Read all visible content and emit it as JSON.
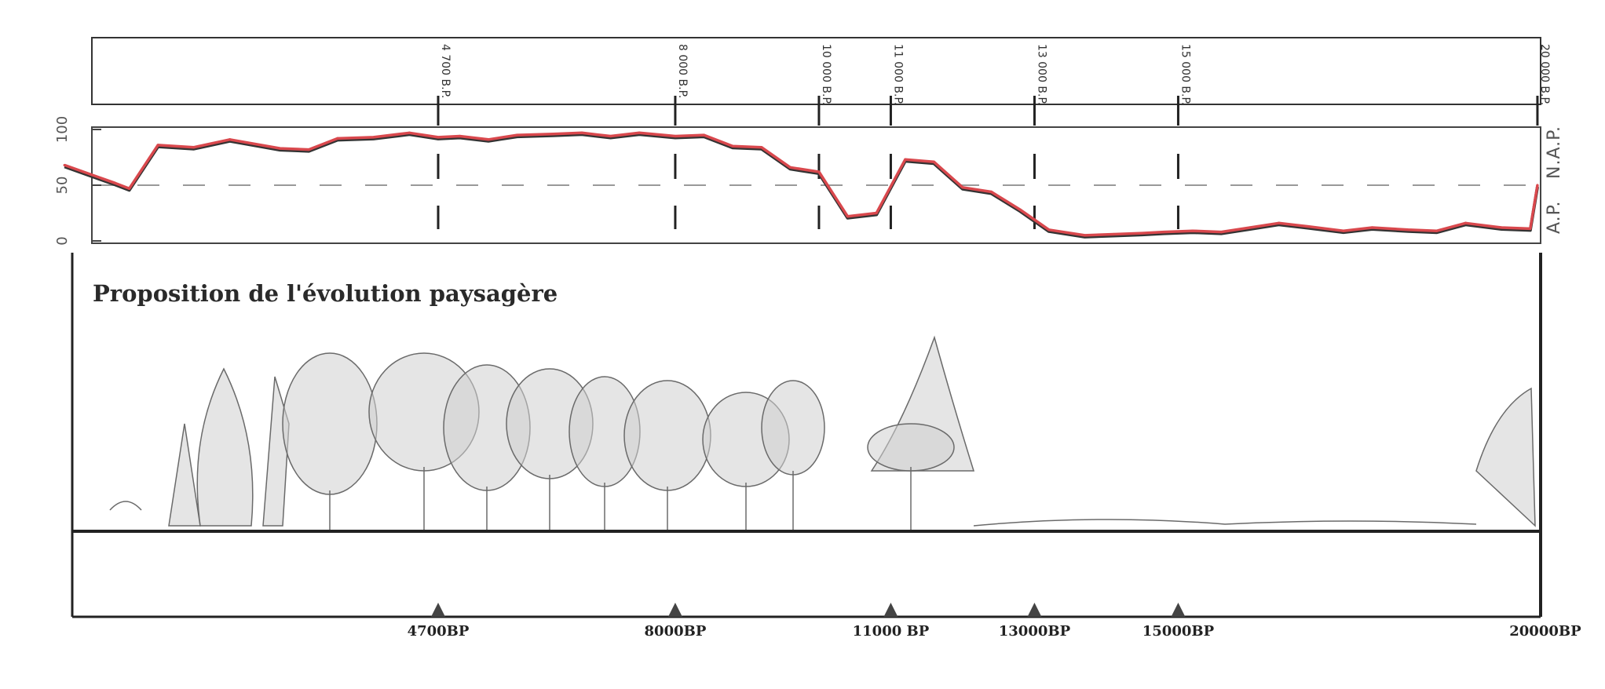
{
  "chart_data": {
    "type": "line",
    "title": "Proposition de l'évolution paysagère",
    "ylim": [
      0,
      100
    ],
    "yticks": [
      "0",
      "50",
      "100"
    ],
    "right_labels": {
      "top": "N.A.P.",
      "bottom": "A.P."
    },
    "series_color": "#d9484d",
    "dates_top": [
      {
        "label": "4 700 B.P.",
        "age": 4700
      },
      {
        "label": "8 000 B.P.",
        "age": 8000
      },
      {
        "label": "10 000 B.P.",
        "age": 10000
      },
      {
        "label": "11 000 B.P.",
        "age": 11000
      },
      {
        "label": "13 000 B.P.",
        "age": 13000
      },
      {
        "label": "15 000 B.P.",
        "age": 15000
      },
      {
        "label": "20 000 B.P.",
        "age": 20000
      }
    ],
    "dates_bottom": [
      {
        "label": "4700BP",
        "age": 4700
      },
      {
        "label": "8000BP",
        "age": 8000
      },
      {
        "label": "11000 BP",
        "age": 11000
      },
      {
        "label": "13000BP",
        "age": 13000
      },
      {
        "label": "15000BP",
        "age": 15000
      },
      {
        "label": "20000BP",
        "age": 20000
      }
    ],
    "x_age_bp": [
      -500,
      200,
      400,
      800,
      1300,
      1800,
      2500,
      2900,
      3300,
      3800,
      4300,
      4700,
      5000,
      5400,
      5800,
      6300,
      6700,
      7100,
      7500,
      8000,
      8400,
      8800,
      9200,
      9600,
      10000,
      10400,
      10800,
      11200,
      11600,
      12000,
      12400,
      12800,
      13200,
      13700,
      14100,
      14500,
      14800,
      15200,
      15600,
      16000,
      16400,
      16800,
      17300,
      17700,
      18200,
      18600,
      19000,
      19500,
      19900,
      20000
    ],
    "y_ap_percent": [
      68,
      52,
      47,
      86,
      84,
      91,
      83,
      82,
      92,
      93,
      97,
      93,
      94,
      91,
      95,
      96,
      97,
      94,
      97,
      94,
      95,
      85,
      84,
      66,
      62,
      22,
      25,
      73,
      71,
      48,
      44,
      28,
      10,
      5,
      6,
      7,
      8,
      9,
      8,
      12,
      16,
      13,
      9,
      12,
      10,
      9,
      16,
      12,
      11,
      50
    ]
  }
}
